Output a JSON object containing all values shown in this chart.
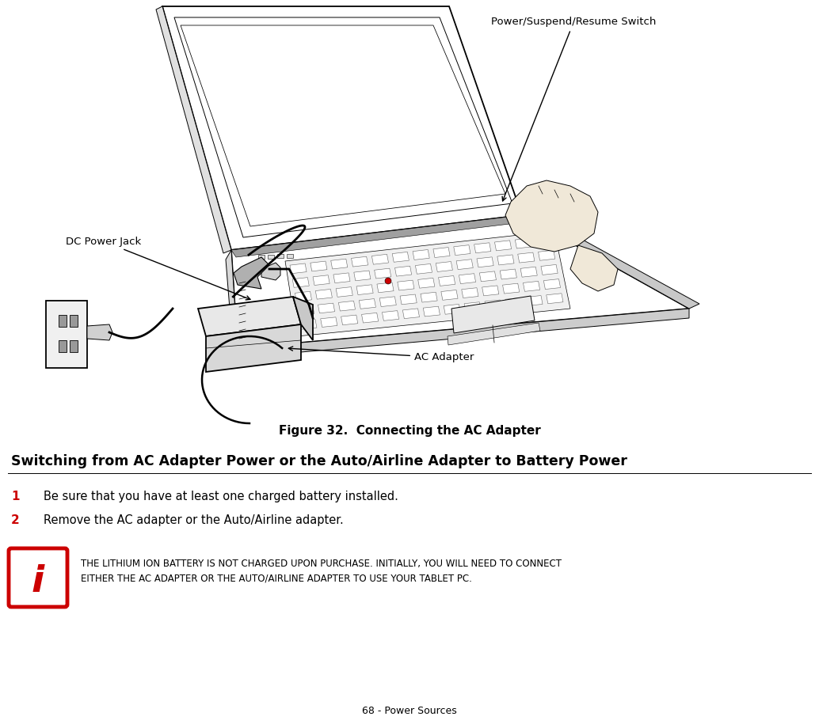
{
  "bg_color": "#ffffff",
  "fig_width": 10.34,
  "fig_height": 9.15,
  "fig_caption": "Figure 32.  Connecting the AC Adapter",
  "heading": "Switching from AC Adapter Power or the Auto/Airline Adapter to Battery Power",
  "step1_num": "1",
  "step1_text": "Be sure that you have at least one charged battery installed.",
  "step2_num": "2",
  "step2_text": "Remove the AC adapter or the Auto/Airline adapter.",
  "num_color": "#cc0000",
  "note_line1": "THE LITHIUM ION BATTERY IS NOT CHARGED UPON PURCHASE. INITIALLY, YOU WILL NEED TO CONNECT",
  "note_line2": "EITHER THE AC ADAPTER OR THE AUTO/AIRLINE ADAPTER TO USE YOUR TABLET PC.",
  "note_line1_mixed": [
    [
      "THE ",
      false,
      false
    ],
    [
      "LITHIUM ION BATTERY IS NOT CHARGED UPON PURCHASE. ",
      false,
      false
    ],
    [
      "INITIALLY, YOU WILL NEED TO CONNECT",
      false,
      false
    ]
  ],
  "footer_text": "68 - Power Sources",
  "label_power": "Power/Suspend/Resume Switch",
  "label_dc": "DC Power Jack",
  "label_ac": "AC Adapter"
}
